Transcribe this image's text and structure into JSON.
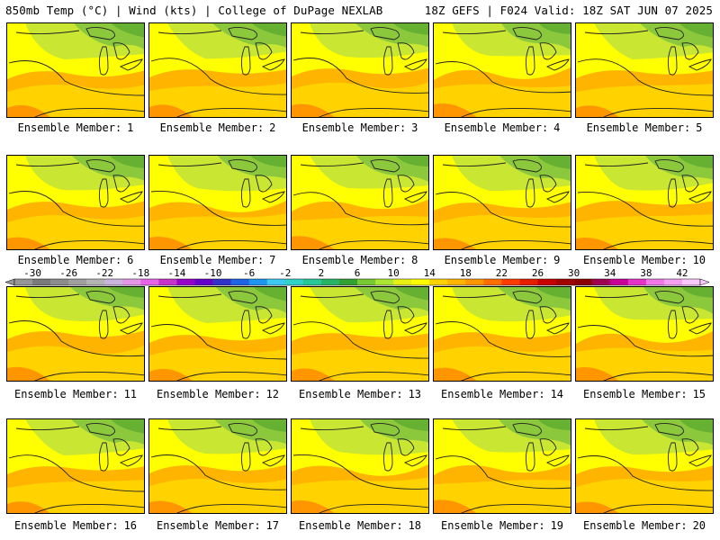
{
  "header": {
    "left": "850mb Temp (°C) | Wind (kts) | College of DuPage NEXLAB",
    "right": "18Z GEFS | F024 Valid: 18Z SAT JUN 07 2025"
  },
  "caption_label": "Ensemble Member:",
  "members": [
    1,
    2,
    3,
    4,
    5,
    6,
    7,
    8,
    9,
    10,
    11,
    12,
    13,
    14,
    15,
    16,
    17,
    18,
    19,
    20
  ],
  "colorbar": {
    "tick_labels": [
      "-30",
      "-26",
      "-22",
      "-18",
      "-14",
      "-10",
      "-6",
      "-2",
      "2",
      "6",
      "10",
      "14",
      "18",
      "22",
      "26",
      "30",
      "34",
      "38",
      "42"
    ],
    "colors": [
      "#969696",
      "#7a7a7a",
      "#8c8c8c",
      "#a0a0a0",
      "#b4b4b4",
      "#c8b4dc",
      "#e696e6",
      "#e664e6",
      "#c832c8",
      "#9600c8",
      "#6400c8",
      "#3232c8",
      "#1e64e6",
      "#1e96f0",
      "#3cc8f0",
      "#32d2c8",
      "#28c896",
      "#28b464",
      "#32a032",
      "#78c832",
      "#aae632",
      "#e6f014",
      "#ffff00",
      "#ffd200",
      "#ffb400",
      "#ff9600",
      "#ff6e00",
      "#ff3c00",
      "#e61e00",
      "#c80000",
      "#a00000",
      "#8c0000",
      "#a00050",
      "#c80096",
      "#e632c8",
      "#f078e6",
      "#f5a0f0",
      "#fac8fa"
    ]
  },
  "palette": {
    "green_dark": "#66b032",
    "green": "#8cc83c",
    "yellow_green": "#c8e632",
    "yellow": "#ffff00",
    "amber": "#ffd200",
    "orange": "#ffb400",
    "orange_dark": "#ff9600"
  }
}
